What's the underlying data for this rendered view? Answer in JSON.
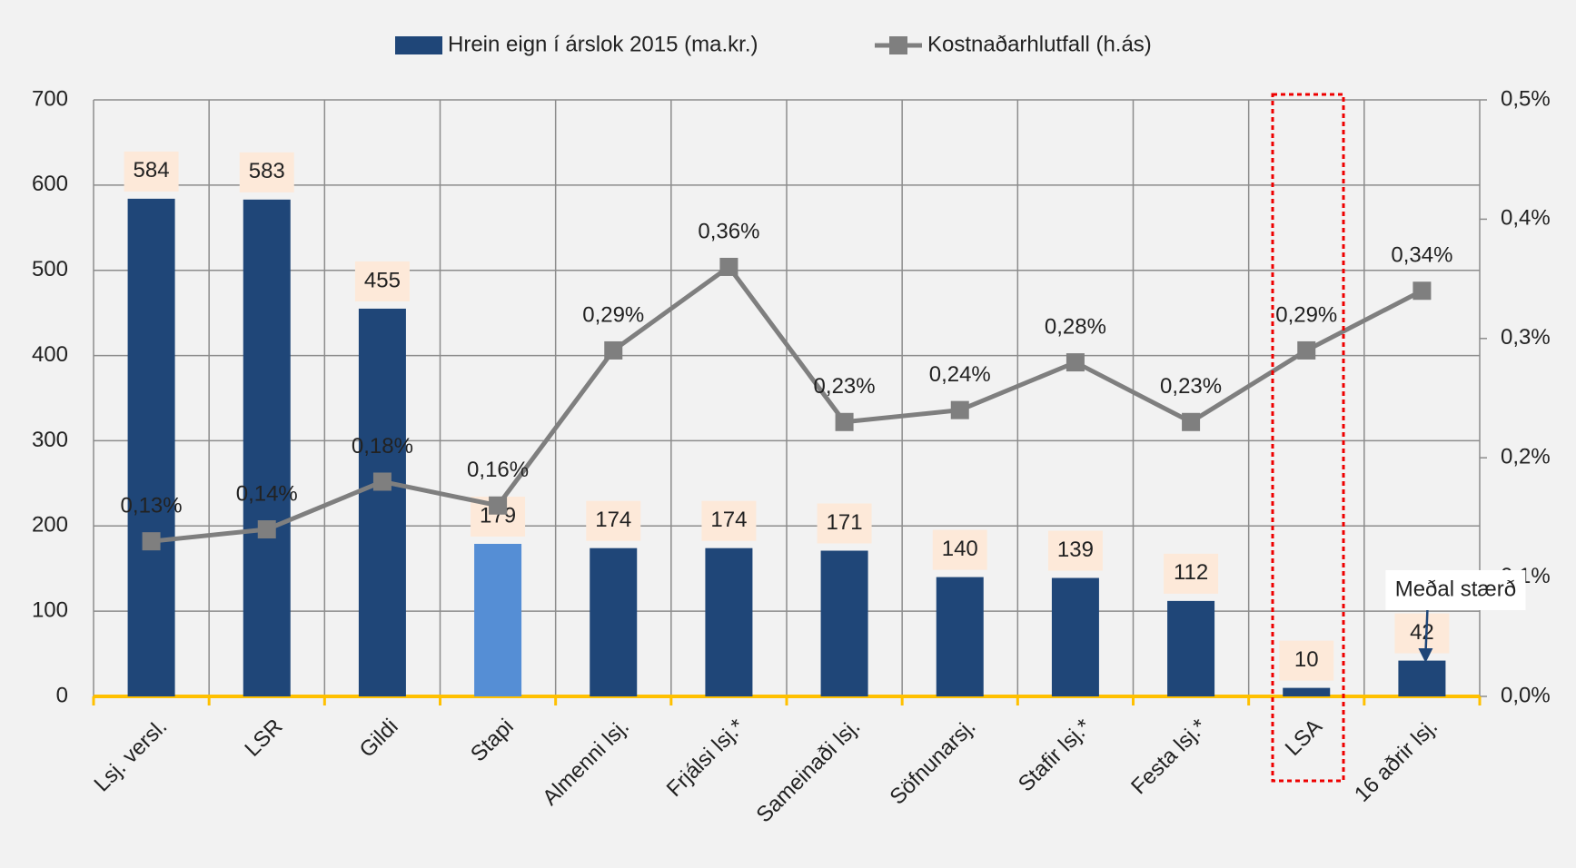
{
  "chart_data": {
    "type": "bar",
    "categories": [
      "Lsj. versl.",
      "LSR",
      "Gildi",
      "Stapi",
      "Almenni lsj.",
      "Frjálsi lsj.*",
      "Sameinaði lsj.",
      "Söfnunarsj.",
      "Stafir lsj.*",
      "Festa lsj.*",
      "LSA",
      "16 aðrir lsj."
    ],
    "series": [
      {
        "name": "Hrein eign í árslok 2015 (ma.kr.)",
        "type": "bar",
        "color": "#1f4678",
        "colors": [
          "#1f4678",
          "#1f4678",
          "#1f4678",
          "#558ed5",
          "#1f4678",
          "#1f4678",
          "#1f4678",
          "#1f4678",
          "#1f4678",
          "#1f4678",
          "#1f4678",
          "#1f4678"
        ],
        "values": [
          584,
          583,
          455,
          179,
          174,
          174,
          171,
          140,
          139,
          112,
          10,
          42
        ]
      },
      {
        "name": "Kostnaðarhlutfall (h.ás)",
        "type": "line",
        "axis": "y2",
        "color": "#7f7f7f",
        "values": [
          0.13,
          0.14,
          0.18,
          0.16,
          0.29,
          0.36,
          0.23,
          0.24,
          0.28,
          0.23,
          0.29,
          0.34
        ],
        "value_labels": [
          "0,13%",
          "0,14%",
          "0,18%",
          "0,16%",
          "0,29%",
          "0,36%",
          "0,23%",
          "0,24%",
          "0,28%",
          "0,23%",
          "0,29%",
          "0,34%"
        ]
      }
    ],
    "ylim": [
      0,
      700
    ],
    "yticks": [
      0,
      100,
      200,
      300,
      400,
      500,
      600,
      700
    ],
    "y2lim": [
      0,
      0.5
    ],
    "y2ticks": [
      {
        "value": 0,
        "label": "0,0%"
      },
      {
        "value": 0.1,
        "label": "0,1%"
      },
      {
        "value": 0.2,
        "label": "0,2%"
      },
      {
        "value": 0.3,
        "label": "0,3%"
      },
      {
        "value": 0.4,
        "label": "0,4%"
      },
      {
        "value": 0.5,
        "label": "0,5%"
      }
    ],
    "grid": true,
    "legend": "top",
    "annotation": "Meðal stærð"
  }
}
